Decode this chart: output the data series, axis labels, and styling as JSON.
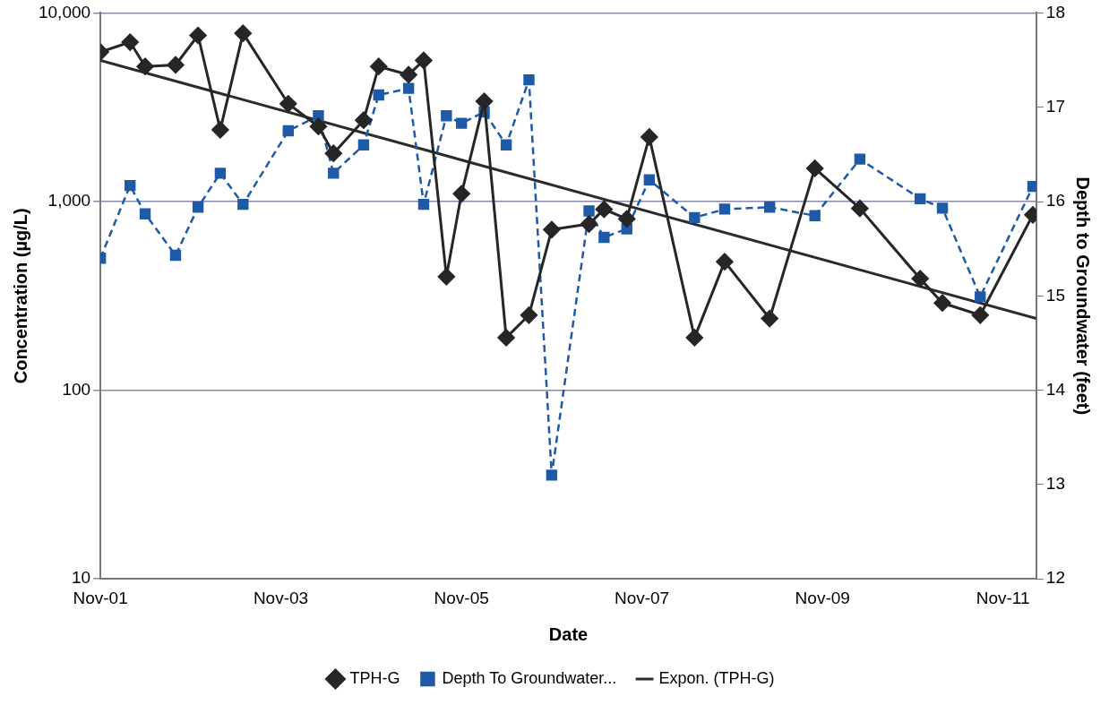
{
  "chart_data": {
    "type": "line",
    "xlabel": "Date",
    "ylabel": "Concentration (µg/L)",
    "y2label": "Depth to Groundwater (feet)",
    "log": "y",
    "grid": "y",
    "legend": "bottom",
    "xlim": [
      "2001-11",
      "2012-03-15"
    ],
    "xticks": [
      {
        "value": "2001-11",
        "label": "Nov-01"
      },
      {
        "value": "2003-11",
        "label": "Nov-03"
      },
      {
        "value": "2005-11",
        "label": "Nov-05"
      },
      {
        "value": "2007-11",
        "label": "Nov-07"
      },
      {
        "value": "2009-11",
        "label": "Nov-09"
      },
      {
        "value": "2011-11",
        "label": "Nov-11"
      }
    ],
    "ylim": [
      10,
      10000
    ],
    "yticks": [
      10,
      {
        "value": 100,
        "label": "100"
      },
      {
        "value": 1000,
        "label": "1,000"
      },
      {
        "value": 10000,
        "label": "10,000"
      }
    ],
    "y2lim": [
      12,
      18
    ],
    "y2ticks": [
      12,
      13,
      14,
      15,
      16,
      17,
      18
    ],
    "x": [
      "2001-11",
      "2002-03",
      "2002-05",
      "2002-09",
      "2002-12",
      "2003-03",
      "2003-06",
      "2003-12",
      "2004-04",
      "2004-06",
      "2004-10",
      "2004-12",
      "2005-04",
      "2005-06",
      "2005-09",
      "2005-11",
      "2006-02",
      "2006-05",
      "2006-08",
      "2006-11",
      "2007-04",
      "2007-06",
      "2007-09",
      "2007-12",
      "2008-06",
      "2008-10",
      "2009-04",
      "2009-10",
      "2010-04",
      "2010-12",
      "2011-03",
      "2011-08",
      "2012-03"
    ],
    "series": [
      {
        "name": "TPH-G",
        "color": "#262626",
        "marker": "diamond",
        "line_style": "solid",
        "values": [
          6200,
          7000,
          5200,
          5300,
          7600,
          2400,
          7800,
          3300,
          2500,
          1800,
          2700,
          5200,
          4700,
          5600,
          400,
          1100,
          3400,
          190,
          250,
          710,
          760,
          910,
          810,
          2200,
          190,
          480,
          240,
          1500,
          920,
          390,
          290,
          250,
          850
        ]
      },
      {
        "name": "Depth To Groundwater...",
        "color": "#1f5aa8",
        "marker": "square",
        "line_style": "dashed",
        "axis": "y2",
        "values": [
          15.4,
          16.17,
          15.87,
          15.43,
          15.94,
          16.3,
          15.97,
          16.75,
          16.91,
          16.3,
          16.6,
          17.13,
          17.2,
          15.97,
          16.91,
          16.83,
          16.95,
          16.6,
          17.29,
          13.1,
          15.9,
          15.62,
          15.71,
          16.23,
          15.83,
          15.92,
          15.94,
          15.85,
          16.45,
          16.03,
          15.93,
          14.99,
          16.16
        ]
      },
      {
        "name": "Expon. (TPH-G)",
        "color": "#2b2b2b",
        "type": "line",
        "marker": "none",
        "line_style": "solid",
        "x": [
          "2001-11",
          "2012-03-15"
        ],
        "values": [
          5600,
          240
        ]
      }
    ]
  }
}
